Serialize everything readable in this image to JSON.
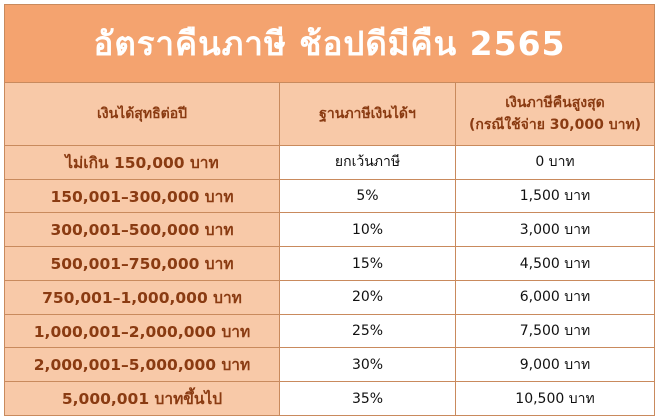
{
  "title": "อัตราคืนภาษี ช้อปดีมีคืน 2565",
  "headers": {
    "income": "เงินได้สุทธิต่อปี",
    "rate": "ฐานภาษีเงินได้ฯ",
    "refund_line1": "เงินภาษีคืนสูงสุด",
    "refund_line2": "(กรณีใช้จ่าย 30,000 บาท)"
  },
  "rows": [
    {
      "income": "ไม่เกิน 150,000 บาท",
      "rate": "ยกเว้นภาษี",
      "refund": "0 บาท"
    },
    {
      "income": "150,001–300,000 บาท",
      "rate": "5%",
      "refund": "1,500 บาท"
    },
    {
      "income": "300,001–500,000 บาท",
      "rate": "10%",
      "refund": "3,000 บาท"
    },
    {
      "income": "500,001–750,000 บาท",
      "rate": "15%",
      "refund": "4,500 บาท"
    },
    {
      "income": "750,001–1,000,000 บาท",
      "rate": "20%",
      "refund": "6,000 บาท"
    },
    {
      "income": "1,000,001–2,000,000 บาท",
      "rate": "25%",
      "refund": "7,500 บาท"
    },
    {
      "income": "2,000,001–5,000,000 บาท",
      "rate": "30%",
      "refund": "9,000 บาท"
    },
    {
      "income": "5,000,001 บาทขึ้นไป",
      "rate": "35%",
      "refund": "10,500 บาท"
    }
  ],
  "colors": {
    "title_bg": "#f4a36f",
    "header_bg": "#f8c9a8",
    "header_text": "#8a3b12",
    "title_text": "#ffffff",
    "border": "#c98a5d"
  }
}
